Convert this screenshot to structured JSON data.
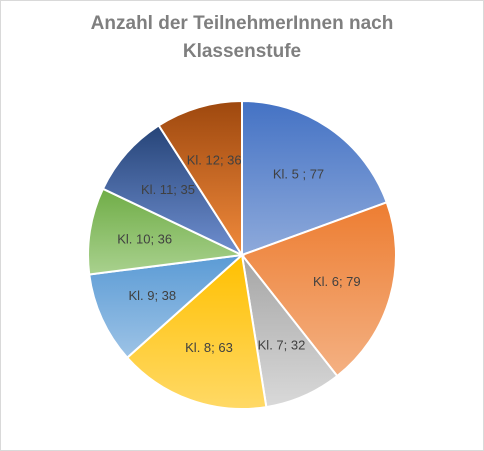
{
  "chart_data": {
    "type": "pie",
    "title_line1": "Anzahl der TeilnehmerInnen nach",
    "title_line2": "Klassenstufe",
    "slices": [
      {
        "label": "Kl. 5 ; 77",
        "value": 77,
        "color_light": "#8eaadb",
        "color_dark": "#4472c4"
      },
      {
        "label": "Kl. 6; 79",
        "value": 79,
        "color_light": "#f4b183",
        "color_dark": "#ed7d31"
      },
      {
        "label": "Kl. 7; 32",
        "value": 32,
        "color_light": "#d9d9d9",
        "color_dark": "#a5a5a5"
      },
      {
        "label": "Kl. 8; 63",
        "value": 63,
        "color_light": "#ffd966",
        "color_dark": "#ffc000"
      },
      {
        "label": "Kl. 9; 38",
        "value": 38,
        "color_light": "#9dc3e6",
        "color_dark": "#5b9bd5"
      },
      {
        "label": "Kl. 10; 36",
        "value": 36,
        "color_light": "#a9d18e",
        "color_dark": "#70ad47"
      },
      {
        "label": "Kl. 11; 35",
        "value": 35,
        "color_light": "#6f8fd0",
        "color_dark": "#264478"
      },
      {
        "label": "Kl. 12; 36",
        "value": 36,
        "color_light": "#f08a3c",
        "color_dark": "#9e480e"
      }
    ]
  }
}
